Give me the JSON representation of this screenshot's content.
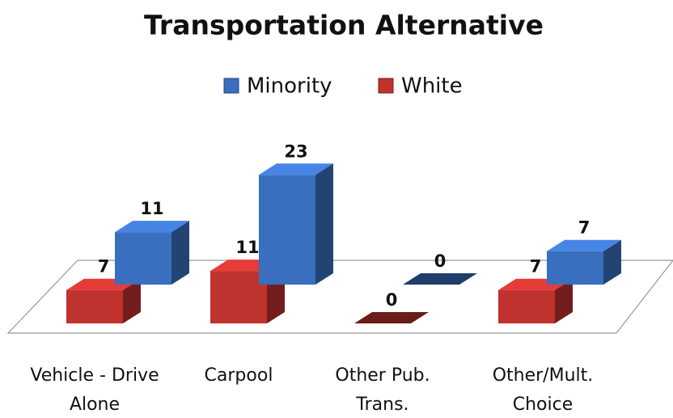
{
  "chart_data": {
    "type": "bar3d",
    "title": "Transportation Alternative",
    "categories": [
      "Vehicle - Drive Alone",
      "Carpool",
      "Other Pub. Trans.",
      "Other/Mult. Choice"
    ],
    "series": [
      {
        "name": "Minority",
        "color": "#3a6fbf",
        "values": [
          11,
          23,
          0,
          7
        ]
      },
      {
        "name": "White",
        "color": "#c0322e",
        "values": [
          7,
          11,
          0,
          7
        ]
      }
    ],
    "legend": "top",
    "data_labels": true
  }
}
